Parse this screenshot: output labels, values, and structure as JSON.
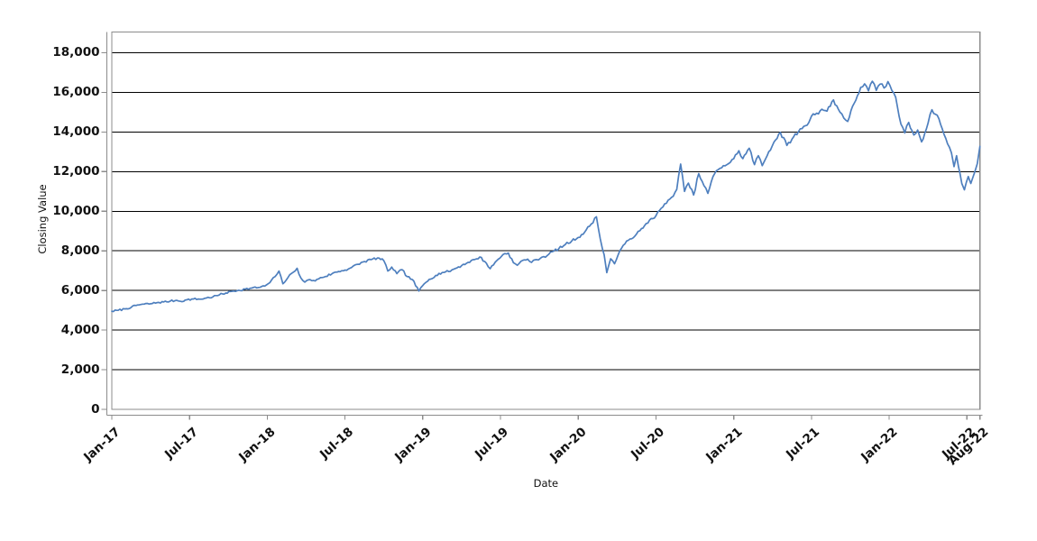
{
  "page": {
    "background": "#ffffff"
  },
  "chart_data": {
    "type": "line",
    "title": "",
    "xlabel": "Date",
    "ylabel": "Closing Value",
    "x_unit": "months since Jan-2017",
    "xlim": [
      0,
      67
    ],
    "ylim": [
      0,
      19045
    ],
    "grid": {
      "show": true,
      "color": "#000000"
    },
    "frame_color": "#8c8c8c",
    "axis_line_color": "#8c8c8c",
    "text_color": "#111111",
    "legend": "none",
    "y_ticks": [
      {
        "value": 0,
        "label": "0"
      },
      {
        "value": 2000,
        "label": "2,000"
      },
      {
        "value": 4000,
        "label": "4,000"
      },
      {
        "value": 6000,
        "label": "6,000"
      },
      {
        "value": 8000,
        "label": "8,000"
      },
      {
        "value": 10000,
        "label": "10,000"
      },
      {
        "value": 12000,
        "label": "12,000"
      },
      {
        "value": 14000,
        "label": "14,000"
      },
      {
        "value": 16000,
        "label": "16,000"
      },
      {
        "value": 18000,
        "label": "18,000"
      }
    ],
    "x_ticks": [
      {
        "m": 0,
        "label": "Jan-17"
      },
      {
        "m": 6,
        "label": "Jul-17"
      },
      {
        "m": 12,
        "label": "Jan-18"
      },
      {
        "m": 18,
        "label": "Jul-18"
      },
      {
        "m": 24,
        "label": "Jan-19"
      },
      {
        "m": 30,
        "label": "Jul-19"
      },
      {
        "m": 36,
        "label": "Jan-20"
      },
      {
        "m": 42,
        "label": "Jul-20"
      },
      {
        "m": 48,
        "label": "Jan-21"
      },
      {
        "m": 54,
        "label": "Jul-21"
      },
      {
        "m": 60,
        "label": "Jan-22"
      },
      {
        "m": 66,
        "label": "Jul-22"
      },
      {
        "m": 67,
        "label": "Aug-22"
      }
    ],
    "series": [
      {
        "name": "Closing Value",
        "color": "#4e7fbe",
        "stroke_width": 1.7,
        "noise": {
          "seed": 7,
          "step_months": 0.12,
          "amplitude_ratio": 0.006,
          "amplitude_base": 15
        },
        "anchors": [
          [
            0,
            4950
          ],
          [
            0.5,
            5000
          ],
          [
            1,
            5070
          ],
          [
            1.5,
            5150
          ],
          [
            2,
            5270
          ],
          [
            2.5,
            5310
          ],
          [
            3,
            5330
          ],
          [
            3.5,
            5390
          ],
          [
            4,
            5420
          ],
          [
            4.5,
            5460
          ],
          [
            5,
            5500
          ],
          [
            5.3,
            5450
          ],
          [
            5.8,
            5530
          ],
          [
            6.3,
            5570
          ],
          [
            6.8,
            5560
          ],
          [
            7.3,
            5620
          ],
          [
            7.8,
            5680
          ],
          [
            8.3,
            5780
          ],
          [
            8.8,
            5870
          ],
          [
            9.3,
            5960
          ],
          [
            9.8,
            6010
          ],
          [
            10.3,
            6070
          ],
          [
            10.8,
            6120
          ],
          [
            11.3,
            6150
          ],
          [
            11.8,
            6220
          ],
          [
            12.2,
            6400
          ],
          [
            12.6,
            6700
          ],
          [
            12.9,
            6980
          ],
          [
            13.2,
            6340
          ],
          [
            13.6,
            6660
          ],
          [
            14,
            6920
          ],
          [
            14.3,
            7120
          ],
          [
            14.6,
            6620
          ],
          [
            14.9,
            6420
          ],
          [
            15.3,
            6550
          ],
          [
            15.7,
            6480
          ],
          [
            16.1,
            6650
          ],
          [
            16.5,
            6710
          ],
          [
            17,
            6850
          ],
          [
            17.5,
            6960
          ],
          [
            18,
            7030
          ],
          [
            18.5,
            7160
          ],
          [
            19,
            7320
          ],
          [
            19.5,
            7460
          ],
          [
            20,
            7560
          ],
          [
            20.5,
            7640
          ],
          [
            21,
            7500
          ],
          [
            21.3,
            6980
          ],
          [
            21.6,
            7180
          ],
          [
            22,
            6850
          ],
          [
            22.4,
            7050
          ],
          [
            22.8,
            6700
          ],
          [
            23.2,
            6550
          ],
          [
            23.7,
            5970
          ],
          [
            24,
            6250
          ],
          [
            24.5,
            6560
          ],
          [
            25,
            6760
          ],
          [
            25.5,
            6910
          ],
          [
            26,
            6960
          ],
          [
            26.5,
            7110
          ],
          [
            27,
            7260
          ],
          [
            27.5,
            7420
          ],
          [
            28,
            7560
          ],
          [
            28.4,
            7690
          ],
          [
            28.9,
            7380
          ],
          [
            29.2,
            7100
          ],
          [
            29.7,
            7500
          ],
          [
            30.2,
            7820
          ],
          [
            30.6,
            7890
          ],
          [
            31,
            7400
          ],
          [
            31.3,
            7270
          ],
          [
            31.7,
            7520
          ],
          [
            32.1,
            7580
          ],
          [
            32.4,
            7420
          ],
          [
            32.8,
            7560
          ],
          [
            33.2,
            7680
          ],
          [
            33.6,
            7760
          ],
          [
            34,
            7960
          ],
          [
            34.5,
            8110
          ],
          [
            35,
            8320
          ],
          [
            35.5,
            8500
          ],
          [
            36,
            8680
          ],
          [
            36.5,
            8950
          ],
          [
            37,
            9350
          ],
          [
            37.4,
            9720
          ],
          [
            37.7,
            8600
          ],
          [
            38,
            7800
          ],
          [
            38.2,
            6900
          ],
          [
            38.5,
            7600
          ],
          [
            38.8,
            7350
          ],
          [
            39.2,
            8000
          ],
          [
            39.6,
            8350
          ],
          [
            40,
            8600
          ],
          [
            40.5,
            8850
          ],
          [
            41,
            9150
          ],
          [
            41.5,
            9550
          ],
          [
            42,
            9780
          ],
          [
            42.4,
            10150
          ],
          [
            42.8,
            10400
          ],
          [
            43.2,
            10700
          ],
          [
            43.6,
            11100
          ],
          [
            43.9,
            12380
          ],
          [
            44.2,
            11000
          ],
          [
            44.5,
            11420
          ],
          [
            44.9,
            10820
          ],
          [
            45.3,
            11900
          ],
          [
            45.7,
            11300
          ],
          [
            46,
            10900
          ],
          [
            46.4,
            11750
          ],
          [
            46.8,
            12100
          ],
          [
            47.2,
            12300
          ],
          [
            47.6,
            12400
          ],
          [
            48,
            12650
          ],
          [
            48.4,
            13050
          ],
          [
            48.7,
            12650
          ],
          [
            49.2,
            13180
          ],
          [
            49.6,
            12350
          ],
          [
            49.9,
            12800
          ],
          [
            50.2,
            12300
          ],
          [
            50.7,
            13000
          ],
          [
            51.1,
            13480
          ],
          [
            51.6,
            13980
          ],
          [
            52.1,
            13320
          ],
          [
            52.5,
            13650
          ],
          [
            53,
            14020
          ],
          [
            53.4,
            14280
          ],
          [
            53.8,
            14480
          ],
          [
            54,
            14800
          ],
          [
            54.4,
            14950
          ],
          [
            54.8,
            15150
          ],
          [
            55.2,
            15050
          ],
          [
            55.7,
            15620
          ],
          [
            56.2,
            15000
          ],
          [
            56.8,
            14530
          ],
          [
            57.3,
            15450
          ],
          [
            57.8,
            16250
          ],
          [
            58.1,
            16430
          ],
          [
            58.4,
            16080
          ],
          [
            58.7,
            16560
          ],
          [
            59,
            16100
          ],
          [
            59.3,
            16420
          ],
          [
            59.6,
            16220
          ],
          [
            59.9,
            16540
          ],
          [
            60.2,
            16100
          ],
          [
            60.5,
            15750
          ],
          [
            60.9,
            14400
          ],
          [
            61.2,
            13950
          ],
          [
            61.5,
            14480
          ],
          [
            61.9,
            13850
          ],
          [
            62.2,
            14100
          ],
          [
            62.5,
            13500
          ],
          [
            63,
            14450
          ],
          [
            63.3,
            15120
          ],
          [
            63.7,
            14850
          ],
          [
            64.1,
            14150
          ],
          [
            64.5,
            13400
          ],
          [
            64.8,
            12950
          ],
          [
            65,
            12250
          ],
          [
            65.2,
            12800
          ],
          [
            65.6,
            11400
          ],
          [
            65.8,
            11080
          ],
          [
            66.1,
            11750
          ],
          [
            66.3,
            11400
          ],
          [
            66.6,
            11980
          ],
          [
            66.8,
            12400
          ],
          [
            66.9,
            12850
          ],
          [
            67,
            13270
          ]
        ]
      }
    ]
  }
}
